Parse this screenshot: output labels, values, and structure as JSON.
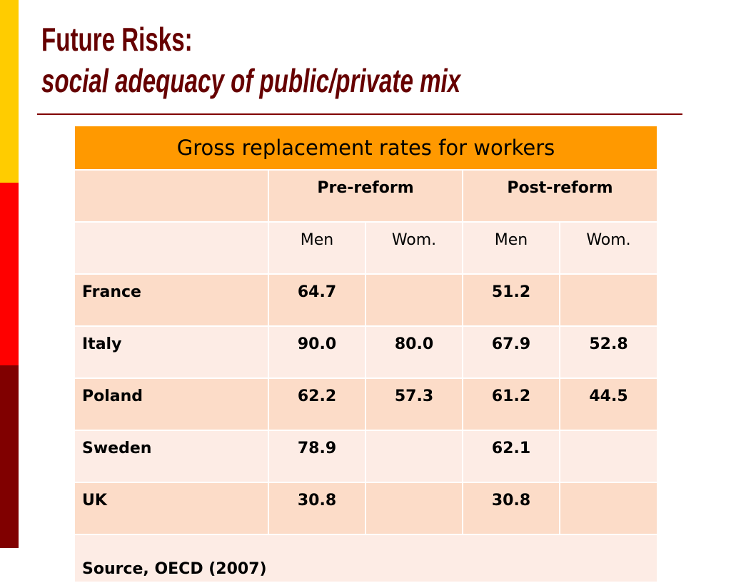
{
  "slide": {
    "title_line1": "Future Risks:",
    "title_line2": "social adequacy of public/private mix"
  },
  "colors": {
    "bar_yellow": "#ffcc00",
    "bar_red": "#ff0000",
    "bar_dark_red": "#800000",
    "title": "#660000",
    "table_caption_bg": "#ff9900",
    "row_band_dark": "#fcdcc8",
    "row_band_light": "#fdece5"
  },
  "table": {
    "caption": "Gross replacement rates for workers",
    "group_headers": [
      "Pre-reform",
      "Post-reform"
    ],
    "sub_headers": [
      "Men",
      "Wom.",
      "Men",
      "Wom."
    ],
    "rows": [
      {
        "country": "France",
        "pre_men": "64.7",
        "pre_wom": "",
        "post_men": "51.2",
        "post_wom": ""
      },
      {
        "country": "Italy",
        "pre_men": "90.0",
        "pre_wom": "80.0",
        "post_men": "67.9",
        "post_wom": "52.8"
      },
      {
        "country": "Poland",
        "pre_men": "62.2",
        "pre_wom": "57.3",
        "post_men": "61.2",
        "post_wom": "44.5"
      },
      {
        "country": "Sweden",
        "pre_men": "78.9",
        "pre_wom": "",
        "post_men": "62.1",
        "post_wom": ""
      },
      {
        "country": "UK",
        "pre_men": "30.8",
        "pre_wom": "",
        "post_men": "30.8",
        "post_wom": ""
      }
    ],
    "source": "Source, OECD (2007)"
  }
}
